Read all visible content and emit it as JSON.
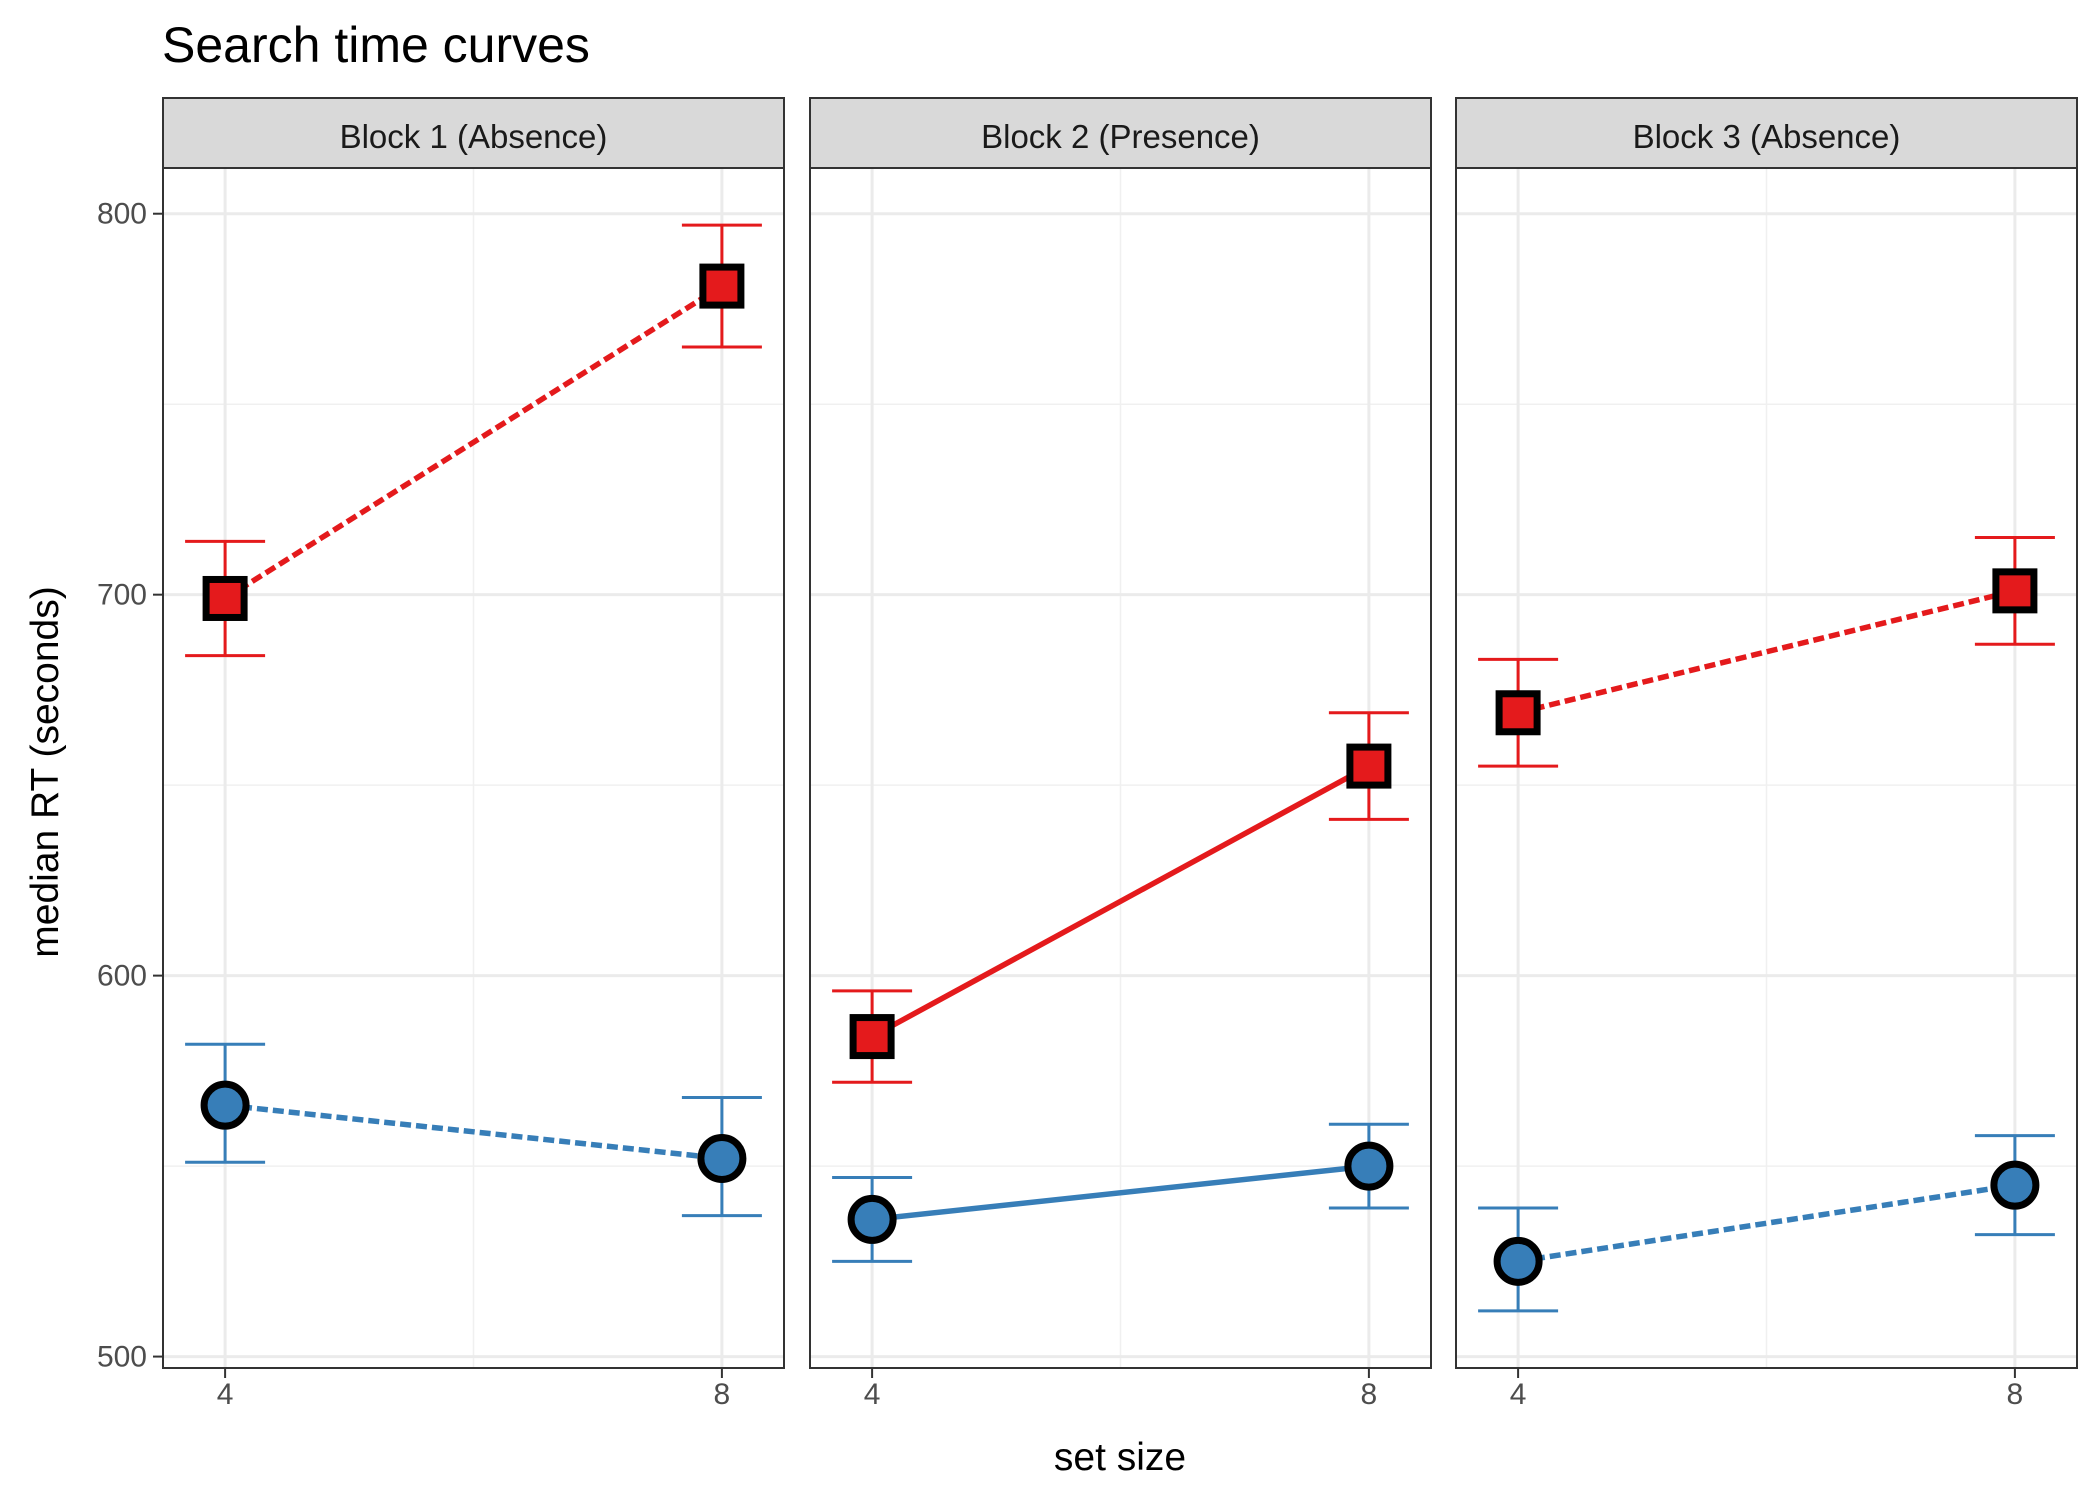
{
  "chart_data": {
    "type": "line",
    "title": "Search time curves",
    "xlabel": "set size",
    "ylabel": "median RT (seconds)",
    "x_ticks": [
      4,
      8
    ],
    "y_ticks": [
      500,
      600,
      700,
      800
    ],
    "xlim": [
      3.5,
      8.5
    ],
    "ylim": [
      497,
      812
    ],
    "grid": true,
    "legend": "none",
    "colors": {
      "red": "#e41a1c",
      "blue": "#377eb8"
    },
    "facets": [
      {
        "label": "Block 1 (Absence)",
        "series": [
          {
            "color": "red",
            "marker": "square",
            "linestyle": "dashed",
            "points": [
              {
                "x": 4,
                "y": 699,
                "ymin": 684,
                "ymax": 714
              },
              {
                "x": 8,
                "y": 781,
                "ymin": 765,
                "ymax": 797
              }
            ]
          },
          {
            "color": "blue",
            "marker": "circle",
            "linestyle": "dashed",
            "points": [
              {
                "x": 4,
                "y": 566,
                "ymin": 551,
                "ymax": 582
              },
              {
                "x": 8,
                "y": 552,
                "ymin": 537,
                "ymax": 568
              }
            ]
          }
        ]
      },
      {
        "label": "Block 2 (Presence)",
        "series": [
          {
            "color": "red",
            "marker": "square",
            "linestyle": "solid",
            "points": [
              {
                "x": 4,
                "y": 584,
                "ymin": 572,
                "ymax": 596
              },
              {
                "x": 8,
                "y": 655,
                "ymin": 641,
                "ymax": 669
              }
            ]
          },
          {
            "color": "blue",
            "marker": "circle",
            "linestyle": "solid",
            "points": [
              {
                "x": 4,
                "y": 536,
                "ymin": 525,
                "ymax": 547
              },
              {
                "x": 8,
                "y": 550,
                "ymin": 539,
                "ymax": 561
              }
            ]
          }
        ]
      },
      {
        "label": "Block 3 (Absence)",
        "series": [
          {
            "color": "red",
            "marker": "square",
            "linestyle": "dashed",
            "points": [
              {
                "x": 4,
                "y": 669,
                "ymin": 655,
                "ymax": 683
              },
              {
                "x": 8,
                "y": 701,
                "ymin": 687,
                "ymax": 715
              }
            ]
          },
          {
            "color": "blue",
            "marker": "circle",
            "linestyle": "dashed",
            "points": [
              {
                "x": 4,
                "y": 525,
                "ymin": 512,
                "ymax": 539
              },
              {
                "x": 8,
                "y": 545,
                "ymin": 532,
                "ymax": 558
              }
            ]
          }
        ]
      }
    ]
  }
}
